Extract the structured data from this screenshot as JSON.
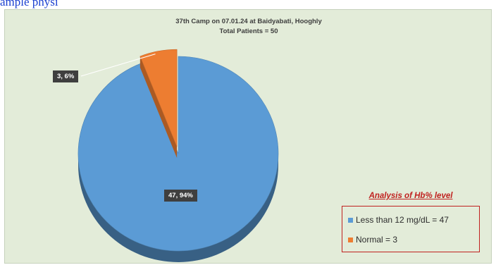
{
  "top_caption": "ample physi",
  "colors": {
    "series_blue": "#5b9bd5",
    "series_orange": "#ed7d31",
    "legend_border": "#c0211f",
    "background": "#e3ecd9"
  },
  "chart_data": {
    "type": "pie",
    "title": "37th Camp on 07.01.24 at Baidyabati, Hooghly",
    "subtitle": "Total Patients = 50",
    "series": [
      {
        "name": "Less than 12 mg/dL",
        "value": 47,
        "percent": 94,
        "label": "47, 94%",
        "legend_label": "Less than 12 mg/dL = 47",
        "color": "#5b9bd5"
      },
      {
        "name": "Normal",
        "value": 3,
        "percent": 6,
        "label": "3, 6%",
        "legend_label": "Normal = 3",
        "color": "#ed7d31"
      }
    ],
    "legend_title": "Analysis of Hb% level",
    "legend_position": "bottom-right",
    "exploded_slice": "Normal"
  }
}
